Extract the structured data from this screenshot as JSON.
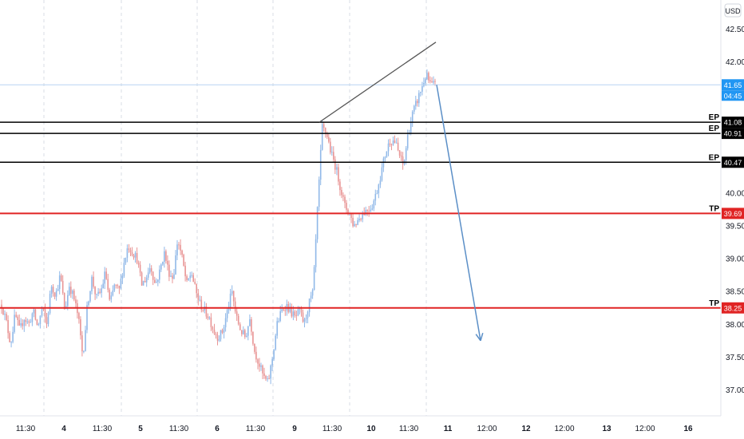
{
  "currency_label": "USD",
  "current_price": {
    "value": 41.65,
    "label": "41.65",
    "countdown": "04:45",
    "color": "#2196f3"
  },
  "colors": {
    "up": "#90b8e8",
    "down": "#e89595",
    "red": "#e02424",
    "black": "#000000",
    "trend": "#555555",
    "arrow": "#5b8fc7",
    "grid": "#d8dce4"
  },
  "chart_data": {
    "type": "candlestick",
    "title": "",
    "xlabel": "",
    "ylabel": "",
    "ylim": [
      36.6,
      42.75
    ],
    "y_ticks": [
      37.0,
      37.5,
      38.0,
      38.5,
      39.0,
      39.5,
      40.0,
      42.0,
      42.5
    ],
    "y_tick_labels": [
      "37.00",
      "37.50",
      "38.00",
      "38.50",
      "39.00",
      "39.50",
      "40.00",
      "42.00",
      "42.50"
    ],
    "x_ticks": [
      "11:30",
      "4",
      "11:30",
      "5",
      "11:30",
      "6",
      "11:30",
      "9",
      "11:30",
      "10",
      "11:30",
      "11",
      "12:00",
      "12",
      "12:00",
      "13",
      "12:00",
      "16"
    ],
    "levels": [
      {
        "label": "EP",
        "price": 41.08,
        "price_label": "41.08",
        "style": "entry"
      },
      {
        "label": "EP",
        "price": 40.91,
        "price_label": "40.91",
        "style": "entry"
      },
      {
        "label": "EP",
        "price": 40.47,
        "price_label": "40.47",
        "style": "entry"
      },
      {
        "label": "TP",
        "price": 39.69,
        "price_label": "39.69",
        "style": "target"
      },
      {
        "label": "TP",
        "price": 38.25,
        "price_label": "38.25",
        "style": "target"
      }
    ],
    "trendline": {
      "from": 41.08,
      "to": 42.3
    },
    "projection": {
      "from": 41.65,
      "to": 37.75
    },
    "price_path": [
      38.3,
      38.05,
      37.7,
      38.15,
      37.9,
      38.1,
      38.0,
      38.2,
      37.95,
      38.25,
      38.0,
      38.6,
      38.45,
      38.75,
      38.2,
      38.6,
      38.4,
      38.1,
      37.5,
      38.3,
      38.7,
      38.4,
      38.5,
      38.8,
      38.3,
      38.6,
      38.5,
      38.9,
      39.2,
      39.1,
      39.0,
      38.6,
      38.7,
      38.9,
      38.6,
      38.8,
      39.1,
      38.8,
      38.7,
      39.3,
      39.0,
      38.6,
      38.8,
      38.5,
      38.3,
      38.2,
      38.1,
      37.9,
      37.8,
      37.9,
      38.2,
      38.5,
      38.1,
      37.9,
      37.8,
      38.1,
      37.6,
      37.4,
      37.2,
      37.1,
      37.5,
      38.0,
      38.2,
      38.3,
      38.2,
      38.1,
      38.2,
      38.0,
      38.3,
      38.5,
      39.8,
      41.0,
      40.9,
      40.6,
      40.4,
      40.1,
      39.8,
      39.7,
      39.5,
      39.6,
      39.7,
      39.75,
      39.8,
      40.0,
      40.3,
      40.6,
      40.8,
      40.8,
      40.6,
      40.4,
      40.9,
      41.2,
      41.4,
      41.6,
      41.8,
      41.65,
      41.65
    ]
  }
}
